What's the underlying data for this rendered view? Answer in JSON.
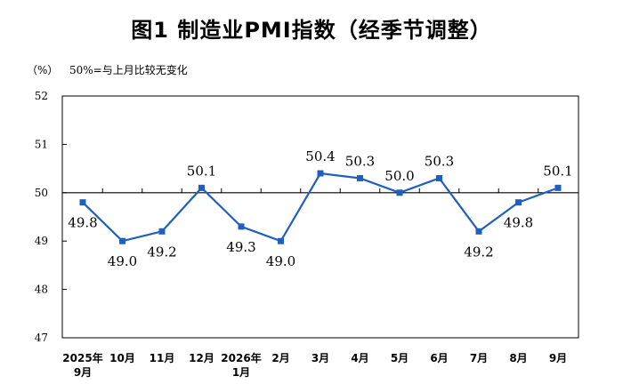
{
  "chart_data": {
    "type": "line",
    "title": "图1  制造业PMI指数（经季节调整）",
    "unit_label": "（%）",
    "note": "50%=与上月比较无变化",
    "categories": [
      "2025年9月",
      "10月",
      "11月",
      "12月",
      "2026年1月",
      "2月",
      "3月",
      "4月",
      "5月",
      "6月",
      "7月",
      "8月",
      "9月"
    ],
    "category_lines": [
      [
        "2025年",
        "9月"
      ],
      [
        "10月"
      ],
      [
        "11月"
      ],
      [
        "12月"
      ],
      [
        "2026年",
        "1月"
      ],
      [
        "2月"
      ],
      [
        "3月"
      ],
      [
        "4月"
      ],
      [
        "5月"
      ],
      [
        "6月"
      ],
      [
        "7月"
      ],
      [
        "8月"
      ],
      [
        "9月"
      ]
    ],
    "values": [
      49.8,
      49.0,
      49.2,
      50.1,
      49.3,
      49.0,
      50.4,
      50.3,
      50.0,
      50.3,
      49.2,
      49.8,
      50.1
    ],
    "value_labels": [
      "49.8",
      "49.0",
      "49.2",
      "50.1",
      "49.3",
      "49.0",
      "50.4",
      "50.3",
      "50.0",
      "50.3",
      "49.2",
      "49.8",
      "50.1"
    ],
    "label_position": [
      "below",
      "below",
      "below",
      "above",
      "below",
      "below",
      "above",
      "above",
      "above",
      "above",
      "below",
      "below",
      "above"
    ],
    "ylim": [
      47,
      52
    ],
    "yticks": [
      47,
      48,
      49,
      50,
      51,
      52
    ],
    "reference_line": 50,
    "grid": false,
    "line_color": "#1f5fbf",
    "marker_color": "#1f5fbf"
  }
}
